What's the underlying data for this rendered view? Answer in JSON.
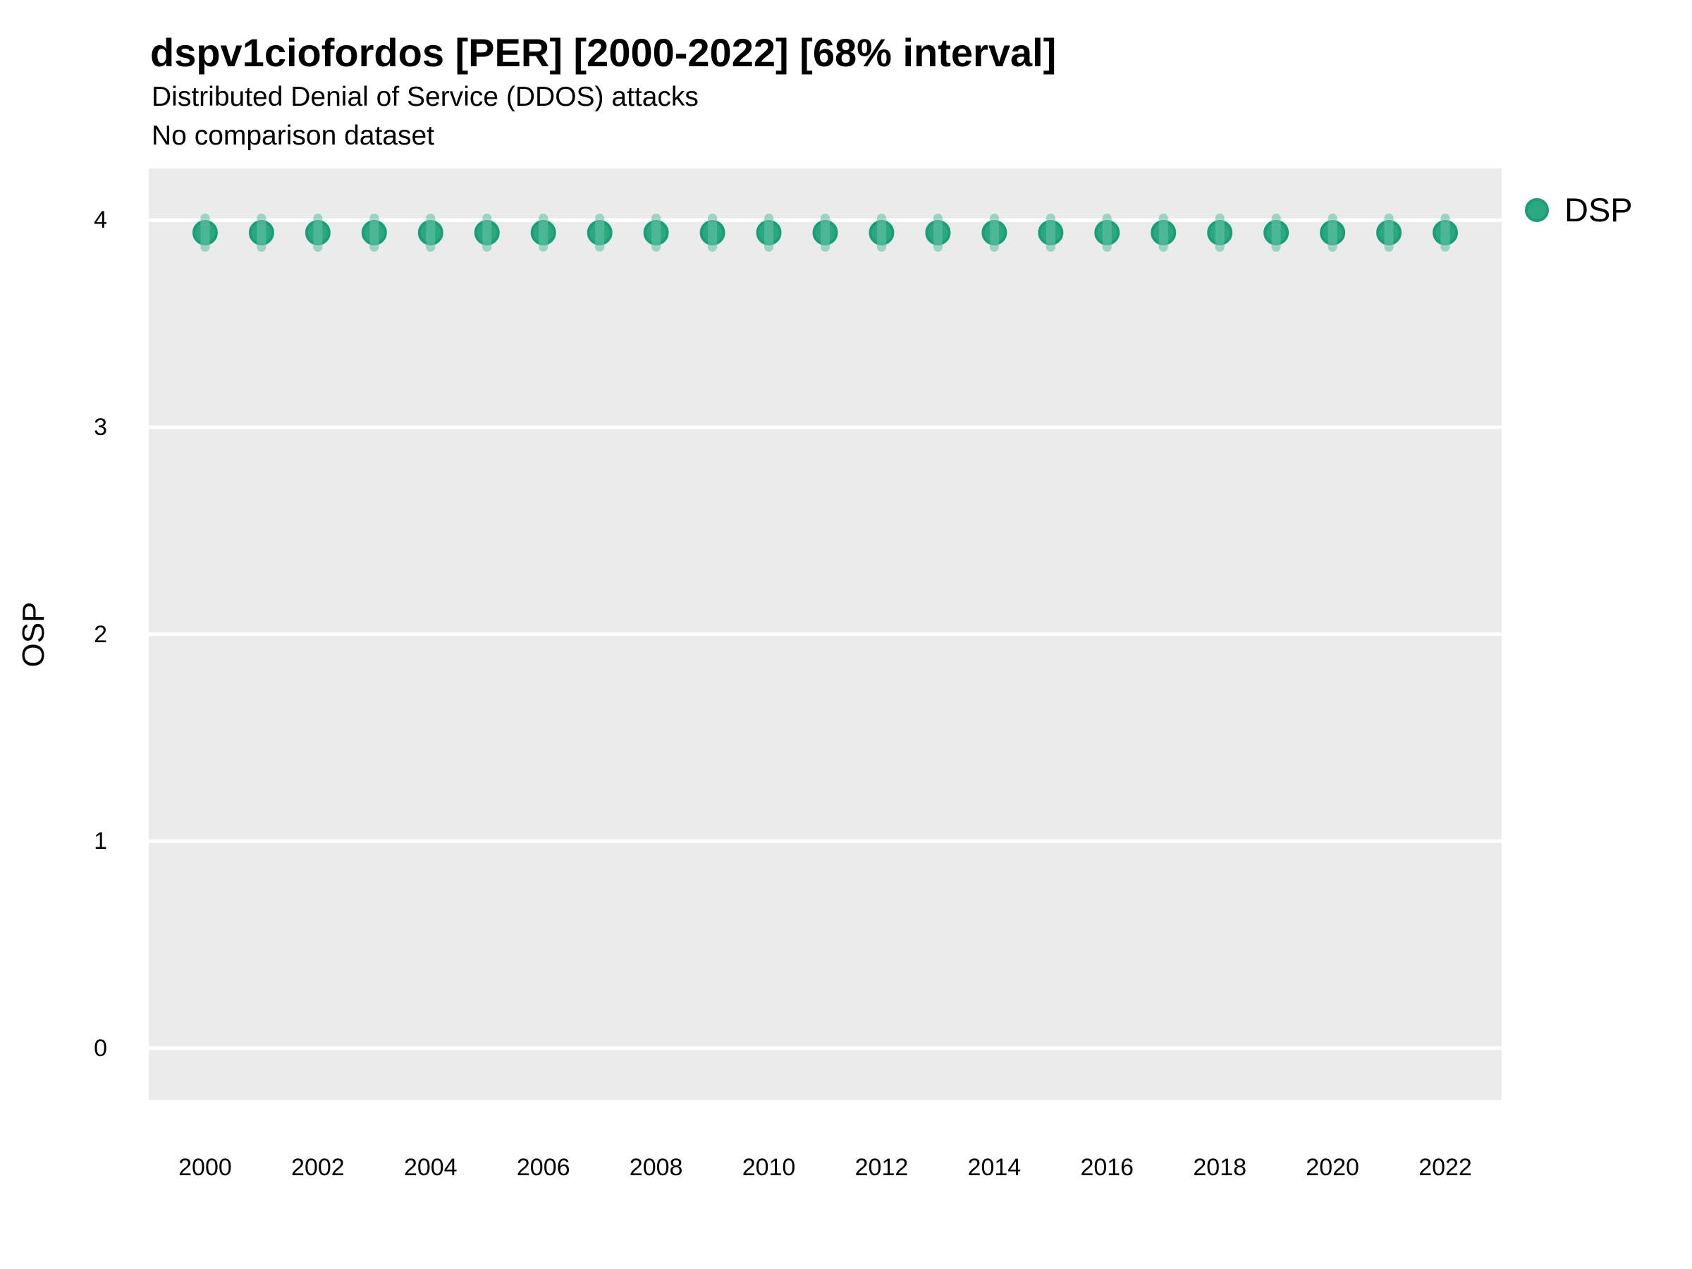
{
  "header": {
    "title": "dspv1ciofordos [PER] [2000-2022] [68% interval]",
    "subtitle_line1": "Distributed Denial of Service (DDOS) attacks",
    "subtitle_line2": "No comparison dataset"
  },
  "legend": {
    "position": "right-top",
    "items": [
      {
        "label": "DSP",
        "marker": "circle-icon",
        "fill": "#2aa87e",
        "stroke": "#1b9e77"
      }
    ]
  },
  "axes": {
    "y_label": "OSP",
    "x_label": "",
    "y_ticks": [
      4,
      3,
      2,
      1,
      0
    ],
    "x_ticks": [
      2000,
      2002,
      2004,
      2006,
      2008,
      2010,
      2012,
      2014,
      2016,
      2018,
      2020,
      2022
    ]
  },
  "colors": {
    "panel_background": "#ebebeb",
    "gridline": "#ffffff",
    "point_fill": "#2aa87e",
    "point_stroke": "#1b9e77",
    "interval_band": "rgba(102, 194, 165, 0.6)",
    "text": "#000000"
  },
  "chart_data": {
    "type": "scatter",
    "title": "dspv1ciofordos [PER] [2000-2022] [68% interval]",
    "subtitle": "Distributed Denial of Service (DDOS) attacks",
    "note": "No comparison dataset",
    "xlabel": "",
    "ylabel": "OSP",
    "xlim": [
      1999,
      2023
    ],
    "ylim": [
      -0.25,
      4.25
    ],
    "grid": "major horizontal white lines on gray panel",
    "legend_position": "right-top",
    "interval_label": "68% interval",
    "series": [
      {
        "name": "DSP",
        "x": [
          2000,
          2001,
          2002,
          2003,
          2004,
          2005,
          2006,
          2007,
          2008,
          2009,
          2010,
          2011,
          2012,
          2013,
          2014,
          2015,
          2016,
          2017,
          2018,
          2019,
          2020,
          2021,
          2022
        ],
        "y": [
          3.94,
          3.94,
          3.94,
          3.94,
          3.94,
          3.94,
          3.94,
          3.94,
          3.94,
          3.94,
          3.94,
          3.94,
          3.94,
          3.94,
          3.94,
          3.94,
          3.94,
          3.94,
          3.94,
          3.94,
          3.94,
          3.94,
          3.94
        ],
        "y_low": [
          3.87,
          3.87,
          3.87,
          3.87,
          3.87,
          3.87,
          3.87,
          3.87,
          3.87,
          3.87,
          3.87,
          3.87,
          3.87,
          3.87,
          3.87,
          3.87,
          3.87,
          3.87,
          3.87,
          3.87,
          3.87,
          3.87,
          3.87
        ],
        "y_high": [
          4.01,
          4.01,
          4.01,
          4.01,
          4.01,
          4.01,
          4.01,
          4.01,
          4.01,
          4.01,
          4.01,
          4.01,
          4.01,
          4.01,
          4.01,
          4.01,
          4.01,
          4.01,
          4.01,
          4.01,
          4.01,
          4.01,
          4.01
        ]
      }
    ]
  }
}
